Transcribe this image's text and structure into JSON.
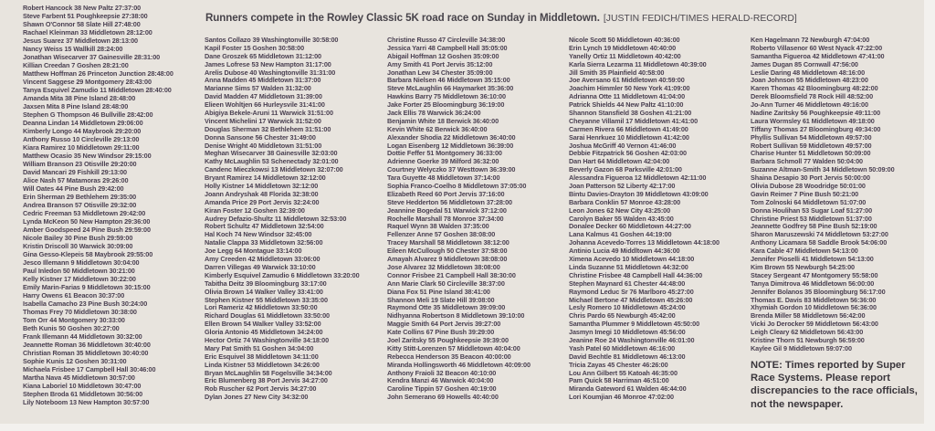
{
  "headline": {
    "title": "Runners compete in the Rowley Classic 5K road race on Sunday in Middletown.",
    "credit": "[JUSTIN FEDICH/TIMES HERALD-RECORD]"
  },
  "results": {
    "columns": [
      [
        "Robert Hancock 38 New Paltz 27:37:00",
        "Steve Farbent 51 Poughkeepsie 27:38:00",
        "Shawn O'Connor 58 Slate Hill 27:48:00",
        "Rachael Kleinman 33 Middletown 28:12:00",
        "Jesus Suarez 37 Middletown 28:13:00",
        "Nancy Weiss 15 Wallkill 28:24:00",
        "Jonathan Wisecarver 37 Gainesville 28:31:00",
        "Killian Creedan 7 Goshen 28:21:00",
        "Matthew Hoffman 26 Princeton Junction 28:48:00",
        "Vincent Saggese 29 Montgomery 28:43:00",
        "Tanya Esquivel Zamudio 11 Middletown 28:40:00",
        "Amanda Mita 38 Pine Island 28:48:00",
        "Jaxsen Mita 8 Pine Island 28:48:00",
        "Stephen G Thompson 46 Bullville 28:42:00",
        "Deanna Lindan 14 Middletown 29:06:00",
        "Kimberly Longo 44 Maybrook 29:20:00",
        "Anthony Russo 10 Circleville 29:13:00",
        "Kiara Ramirez 10 Middletown 29:11:00",
        "Matthew Ocasio 35 New Windsor 29:15:00",
        "William Branson 23 Otisville 29:20:00",
        "David Mancari 29 Fishkill 29:13:00",
        "Alice Nash 57 Matamoras 29:26:00",
        "Will Oates 44 Pine Bush 29:42:00",
        "Erin Sherman 29 Bethlehem 29:35:00",
        "Andrea Branson 57 Otisville 29:32:00",
        "Cedric Freeman 53 Middletown 29:42:00",
        "Lynda McKeon 50 New Hampton 29:36:00",
        "Amber Goodspeed 24 Pine Bush 29:59:00",
        "Nicole Bailey 30 Pine Bush 29:59:00",
        "Kristin Driscoll 30 Warwick 30:09:00",
        "Gina Gesso-Klepeis 58 Maybrook 29:55:00",
        "Jesco Illemann 9 Middletown 30:04:00",
        "Paul Inledon 50 Middletown 30:21:00",
        "Kelly Kistner 17 Middletown 30:22:00",
        "Emily Marin-Farias 9 Middletown 30:15:00",
        "Harry Owens 61 Beacon 30:37:00",
        "Isabella Camacho 23 Pine Bush 30:24:00",
        "Thomas Frey 70 Middletown 30:38:00",
        "Tom Orr 44 Montgomery 30:33:00",
        "Beth Kunis 50 Goshen 30:27:00",
        "Frank Illemann 44 Middletown 30:32:00",
        "Jeannette Roman 36 Middletown 30:40:00",
        "Christian Roman 35 Middletown 30:40:00",
        "Sophie Kunis 12 Goshen 30:31:00",
        "Michaela Frisbee 17 Campbell Hall 30:46:00",
        "Martha Nava 45 Middletown 30:57:00",
        "Kiana Laboriel 10 Middletown 30:47:00",
        "Stephen Broda 61 Middletown 30:56:00",
        "Lily Noteboom 13 New Hampton 30:57:00"
      ],
      [
        "Santos Collazo 39 Washingtonville 30:58:00",
        "Kapil Foster 15 Goshen 30:58:00",
        "Dane Groszek 65 Middletown 31:12:00",
        "James Lofrese 53 New Hampton 31:17:00",
        "Arelis Dubose 40 Washingtonville 31:31:00",
        "Anna Madden 45 Middletown 31:37:00",
        "Marianne Sims 57 Walden 31:32:00",
        "David Madden 47 Middletown 31:39:00",
        "Elieen Wohltjen 66 Hurleysvile 31:41:00",
        "Abigiya Bekele-Aruni 11 Warwick 31:51:00",
        "Vincent Michelini 17 Warwick 31:52:00",
        "Douglas Sherman 32 Bethlehem 31:51:00",
        "Donna Sansone 56 Chester 31:49:00",
        "Denise Wright 40 Middletown 31:51:00",
        "Meghan Wisecarver 38 Gainesville 32:03:00",
        "Kathy McLaughlin 53 Schenectady 32:01:00",
        "Candenc Mieczkowsi 13 Middletown 32:07:00",
        "Bryant Ramirez 14 Middletown 32:12:00",
        "Holly Kistner 14 Middletown 32:12:00",
        "Joann Andryshak 48 Florida 32:38:00",
        "Amanda Price 29 Port Jervis 32:24:00",
        "Kiran Foster 12 Goshen 32:39:00",
        "Audrey Defazio-Shultz 11 Middletown 32:53:00",
        "Robert Schultz 47 Middletown 32:54:00",
        "Hal Koch 74 New Windsor 32:45:00",
        "Natalie Clappa 33 Middletown 32:56:00",
        "Joe Legg 64 Montague 33:14:00",
        "Amy Creeden 42 Middletown 33:06:00",
        "Darren Villegas 49 Warwick 33:10:00",
        "Kimberly Esquivel Zamudio 6 Middletown 33:20:00",
        "Tabitha Deitz 39 Bloomingburg 33:17:00",
        "Olivia Brown 14 Walker Valley 33:41:00",
        "Stephen Kistner 55 Middletown 33:35:00",
        "Lori Rameriz 42 Middletown 33:50:00",
        "Richard Douglas 61 Middletown 33:50:00",
        "Ellen Brown 54 Walker Valley 33:52:00",
        "Gloria Antonio 45 Middletown 34:24:00",
        "Hector Ortiz 74 Washingtonville 34:18:00",
        "Mary Pat Smith 51 Goshen 34:04:00",
        "Eric Esquivel 38 Middletown 34:11:00",
        "Linda Kistner 53 Middletown 34:26:00",
        "Bryan McLaughlin 58 Fogelsville 34:34:00",
        "Eric Blumenberg 38 Port Jervis 34:27:00",
        "Rob Ruscher 62 Port Jervis 34:27:00",
        "Dylan Jones 27 New City 34:32:00"
      ],
      [
        "Christine Russo 47 Circleville 34:38:00",
        "Jessica Yarri 48 Campbell Hall 35:05:00",
        "Abigail Hoffman 12 Goshen 35:09:00",
        "Amy Smith 41 Port Jervis 35:12:00",
        "Jonathan Lew 34 Chester 35:09:00",
        "Barbara Nielsen 46 Middletown 35:15:00",
        "Steve McLaughlin 66 Haymarket 35:36:00",
        "Hawkins Barry 75 Middletown 36:10:00",
        "Jake Forter 25 Bloomingburg 36:19:00",
        "Jack Ellis 78 Warwick 36:24:00",
        "Benjamin White 18 Berwick 36:40:00",
        "Kevin White 62 Berwick 36:40:00",
        "Alexander Shodia 22 Middletown 36:40:00",
        "Logan Eisenberg 12 Middletown 36:39:00",
        "Dottie Feffer 51 Montgomery 36:33:00",
        "Adrienne Goerke 39 Milford 36:32:00",
        "Courtney Welyczko 37 Westtown 36:39:00",
        "Tara Guyette 48 Middletown 37:14:00",
        "Sophia Franco-Coelho 8 Middletown 37:05:00",
        "Elizabeth Reed 60 Port Jervis 37:16:00",
        "Steve Hedderton 56 Middletown 37:28:00",
        "Jeannine Bogedal 51 Warwick 37:12:00",
        "Rochelle Marshall 78 Monroe 37:34:00",
        "Raquel Wynn 38 Walden 37:35:00",
        "Fellenzer Anne 57 Goshen 38:08:00",
        "Tracey Marshall 58 Middletown 38:12:00",
        "Eileen McCullough 50 Chester 37:58:00",
        "Amayah Alvarez 9 Middletown 38:08:00",
        "Jose Alvarez 32 Middletown 38:08:00",
        "Connor Frisbee 21 Campbell Hall 38:30:00",
        "Ann Marie Clark 50 Circleville 38:37:00",
        "Diana Fox 51 Pine Island 38:41:00",
        "Shannon Meli 19 Slate Hill 39:08:00",
        "Raymond Otte 35 Middletown 39:09:00",
        "Nidhyanna Robertson 8 Middletown 39:10:00",
        "Maggie Smith 64 Port Jervis 39:27:00",
        "Kate Collins 67 Pine Bush 39:29:00",
        "Joel Zaritsky 55 Poughkeepsie 39:39:00",
        "Kitty Stitt-Lorenzen 57 Middletown 40:04:00",
        "Rebecca Henderson 35 Beacon 40:00:00",
        "Miranda Hollingsworth 46 Middletown 40:09:00",
        "Anthony Fraioli 32 Beacon 40:10:00",
        "Kendra Manzi 46 Warwick 40:04:00",
        "Caroline Tippin 57 Goshen 40:19:00",
        "John Semerano 69 Howells 40:40:00"
      ],
      [
        "Nicole Scott 50 Middletown 40:36:00",
        "Erin Lynch 19 Middletown 40:40:00",
        "Yanelly Ortiz 11 Middletown 40:42:00",
        "Karla Sierra Lezarma 11 Middletown 40:39:00",
        "Jill Smith 35 Plainfield 40:58:00",
        "Joe Aversano 61 Middletown 40:59:00",
        "Joachim Himmler 50 New York 41:09:00",
        "Adrianna Otte 11 Middletown 41:04:00",
        "Patrick Shields 44 New Paltz 41:10:00",
        "Shannon Stansfield 38 Goshen 41:21:00",
        "Cheyanne Villamil 17 Middletown 41:41:00",
        "Carmen Rivera 66 Middletown 41:49:00",
        "Sarai Henrkuez 10 Middletown 41:42:00",
        "Joshua McGriff 40 Vernon 41:46:00",
        "Debbie Fitzpatrick 56 Goshen 42:03:00",
        "Dan Hart 64 Middletown 42:04:00",
        "Beverly Gazon 68 Parksville 42:01:00",
        "Alessandra Figueroa 12 Middletown 42:11:00",
        "Joan Patterson 52 Liberty 42:17:00",
        "Bintu Davies-Drayton 39 Middletown 43:09:00",
        "Barbara Conklin 57 Monroe 43:28:00",
        "Leon Jones 62 New City 43:25:00",
        "Carolyn Baker 55 Walden 43:45:00",
        "Donalee Decker 60 Middletown 44:27:00",
        "Lana Kalmus 41 Goshen 44:19:00",
        "Johanna Acevedo-Torres 13 Middletown 44:18:00",
        "Antinio Lucia 49 Middltown 44:36:00",
        "Ximena Acevedo 10 Middletown 44:18:00",
        "Linda Suzanne 51 Middletown 44:32:00",
        "Christine Frisbee 48 Campbell Hall 44:36:00",
        "Stephen Maynard 61 Chester 44:48:00",
        "Raymond Leduc Sr 76 Marlboro 45:27:00",
        "Michael Bertone 47 Middletown 45:26:00",
        "Lesly Romero 10 Middletown 45:24:00",
        "Chris Pardo 65 Newburgh 45:42:00",
        "Samantha Plummer 9 Middletown 45:50:00",
        "Jasmyn Imegi 10 Middletown 45:56:00",
        "Jeanine Roe 24 Washingtonville 46:01:00",
        "Yash Patel 60 Middletown 46:16:00",
        "David Bechtle 81 Middletown 46:13:00",
        "Tricia Zayas 45 Chester 46:26:00",
        "Lou Ann Gilbert 55 Katoah 46:35:00",
        "Pam Quick 58 Harriman 46:51:00",
        "Miranda Gateword 61 Walden 46:44:00",
        "Lori Koumjian 46 Monroe 47:02:00"
      ],
      [
        "Ken Hagelmann 72 Newburgh 47:04:00",
        "Roberto Villasenor 60 West Nyack 47:22:00",
        "Samantha Figueroa 42 Middletown 47:41:00",
        "James Dugan 85 Cornwall 47:56:00",
        "Leslie Daring 48 Middletown 48:16:00",
        "Joan Johnson 55 Middletown 48:23:00",
        "Karen Thomas 42 Bloomingburg 48:22:00",
        "Derek Bloomsfield 78 Rock Hill 48:52:00",
        "Jo-Ann Turner 46 Middletown 49:16:00",
        "Nadine Zaritsky 56 Poughkeepsie 49:11:00",
        "Laura Wormsley 61 Middletown 49:18:00",
        "Tiffany Thomas 27 Bloomingburg 49:34:00",
        "Phyllis Sullivan 54 Middletown 49:57:00",
        "Robert Sullivan 59 Middletown 49:57:00",
        "Charise Hunter 51 Middletown 50:09:00",
        "Barbara Schmoll 77 Walden 50:04:00",
        "Suzanne Altman-Smith 34 Middletown 50:09:00",
        "Shaina Desapio 30 Port Jervis 50:00:00",
        "Olivia Dubose 28 Woodridge 50:01:00",
        "Gavin Reimer 7 Pine Bush 50:21:00",
        "Tom Zolnoski 64 Middletown 51:07:00",
        "Donna Houlihan 53 Sugar Loaf 51:27:00",
        "Christine Priest 53 Middletown 51:37:00",
        "Jeannette Godfrey 58 Pine Bush 52:19:00",
        "Sharon Maruszewski 74 Middletown 53:27:00",
        "Anthony Licamara 58 Saddle Brook 54:06:00",
        "Kara Cable 47 Middletown 54:13:00",
        "Jennifer Pioselli 41 Middletown 54:13:00",
        "Kim Brown 55 Newburgh 54:25:00",
        "Stacey Sergeant 47 Montgomery 55:58:00",
        "Tanya Dimitrova 46 Middletown 56:00:00",
        "Jennifer Bolanos 35 Bloomingburg 56:17:00",
        "Thomas E. Davis 83 Middletown 56:36:00",
        "Xhymiah Gordon 10 Middletown 56:36:00",
        "Brenda Miller 58 Middletown 56:42:00",
        "Vicki Jo Derocker 59 Middletown 56:43:00",
        "Leigh Cleary 62 Middletown 56:43:00",
        "Kristine Thorn 51 Newburgh 56:59:00",
        "Kaylee Gil 9 Middletown 59:07:00"
      ]
    ]
  },
  "note": "NOTE: Times reported by Super Race Systems. Please report discrepancies to the race officials, not the newspaper."
}
